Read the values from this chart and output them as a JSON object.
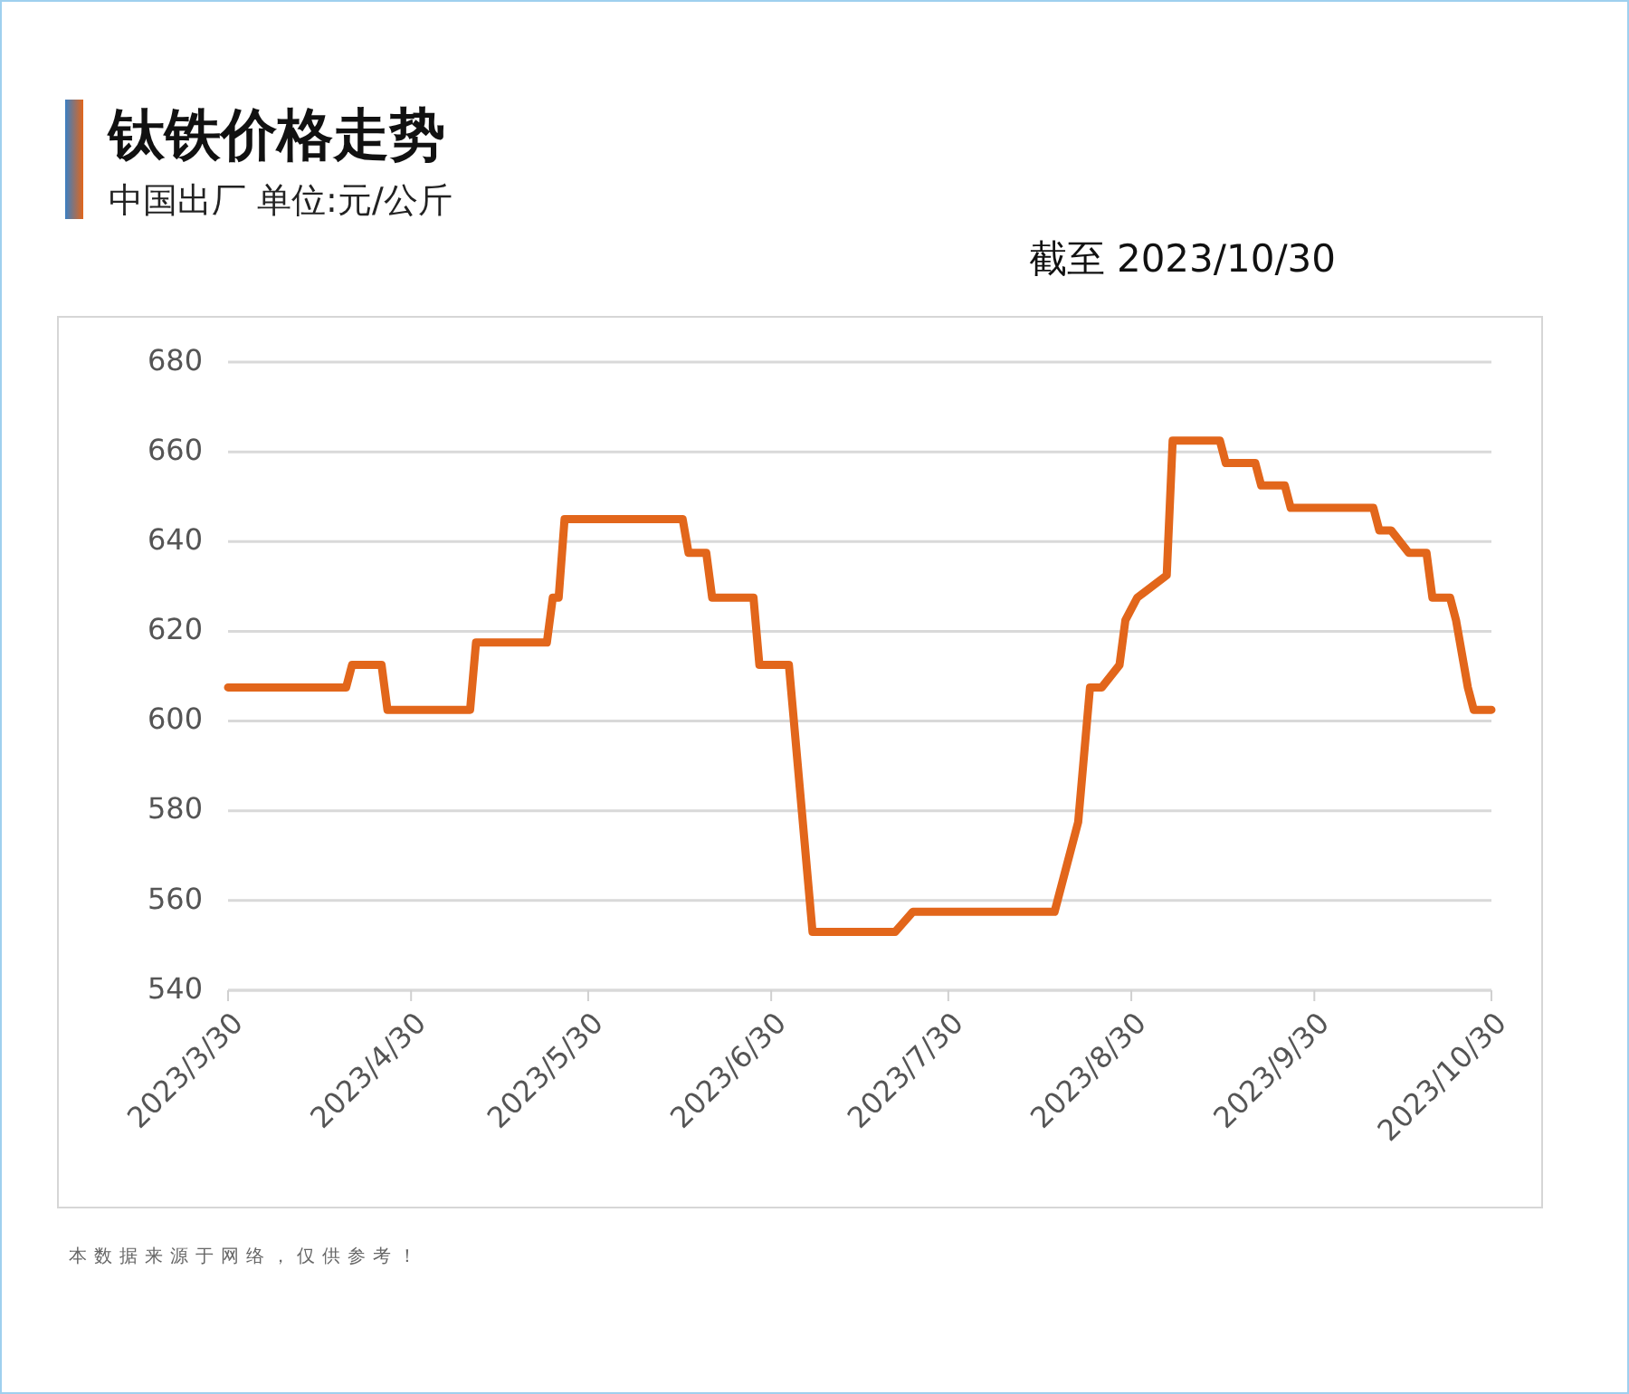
{
  "chart_data": {
    "type": "line",
    "title": "钛铁价格走势",
    "subtitle": "中国出厂 单位:元/公斤",
    "annotations": [
      "截至 2023/10/30",
      "本数据来源于网络，仅供参考！"
    ],
    "x": [
      "2023-03-30",
      "2023-04-19",
      "2023-04-20",
      "2023-04-25",
      "2023-04-26",
      "2023-05-10",
      "2023-05-11",
      "2023-05-23",
      "2023-05-24",
      "2023-05-25",
      "2023-05-26",
      "2023-06-15",
      "2023-06-16",
      "2023-06-19",
      "2023-06-20",
      "2023-06-27",
      "2023-06-28",
      "2023-07-03",
      "2023-07-07",
      "2023-07-21",
      "2023-07-24",
      "2023-08-17",
      "2023-08-21",
      "2023-08-23",
      "2023-08-25",
      "2023-08-28",
      "2023-08-29",
      "2023-08-31",
      "2023-09-05",
      "2023-09-06",
      "2023-09-14",
      "2023-09-15",
      "2023-09-20",
      "2023-09-21",
      "2023-09-25",
      "2023-09-26",
      "2023-10-10",
      "2023-10-11",
      "2023-10-13",
      "2023-10-16",
      "2023-10-19",
      "2023-10-20",
      "2023-10-23",
      "2023-10-24",
      "2023-10-26",
      "2023-10-27",
      "2023-10-30"
    ],
    "series": [
      {
        "color": "#e2661b",
        "values": [
          607.5,
          607.5,
          612.5,
          612.5,
          602.5,
          602.5,
          617.5,
          617.5,
          627.5,
          627.5,
          645,
          645,
          637.5,
          637.5,
          627.5,
          627.5,
          612.5,
          612.5,
          553,
          553,
          557.5,
          557.5,
          577.5,
          607.5,
          607.5,
          612.5,
          622.5,
          627.5,
          632.5,
          662.5,
          662.5,
          657.5,
          657.5,
          652.5,
          652.5,
          647.5,
          647.5,
          642.5,
          642.5,
          637.5,
          637.5,
          627.5,
          627.5,
          622.5,
          607.5,
          602.5,
          602.5
        ]
      }
    ],
    "xlim": [
      "2023-03-30",
      "2023-10-30"
    ],
    "xticks": [
      {
        "value": "2023-03-30",
        "label": "2023/3/30"
      },
      {
        "value": "2023-04-30",
        "label": "2023/4/30"
      },
      {
        "value": "2023-05-30",
        "label": "2023/5/30"
      },
      {
        "value": "2023-06-30",
        "label": "2023/6/30"
      },
      {
        "value": "2023-07-30",
        "label": "2023/7/30"
      },
      {
        "value": "2023-08-30",
        "label": "2023/8/30"
      },
      {
        "value": "2023-09-30",
        "label": "2023/9/30"
      },
      {
        "value": "2023-10-30",
        "label": "2023/10/30"
      }
    ],
    "ylim": [
      540,
      680
    ],
    "yticks": [
      540,
      560,
      580,
      600,
      620,
      640,
      660,
      680
    ],
    "grid": "y",
    "marker": "none",
    "line_style": "solid"
  }
}
